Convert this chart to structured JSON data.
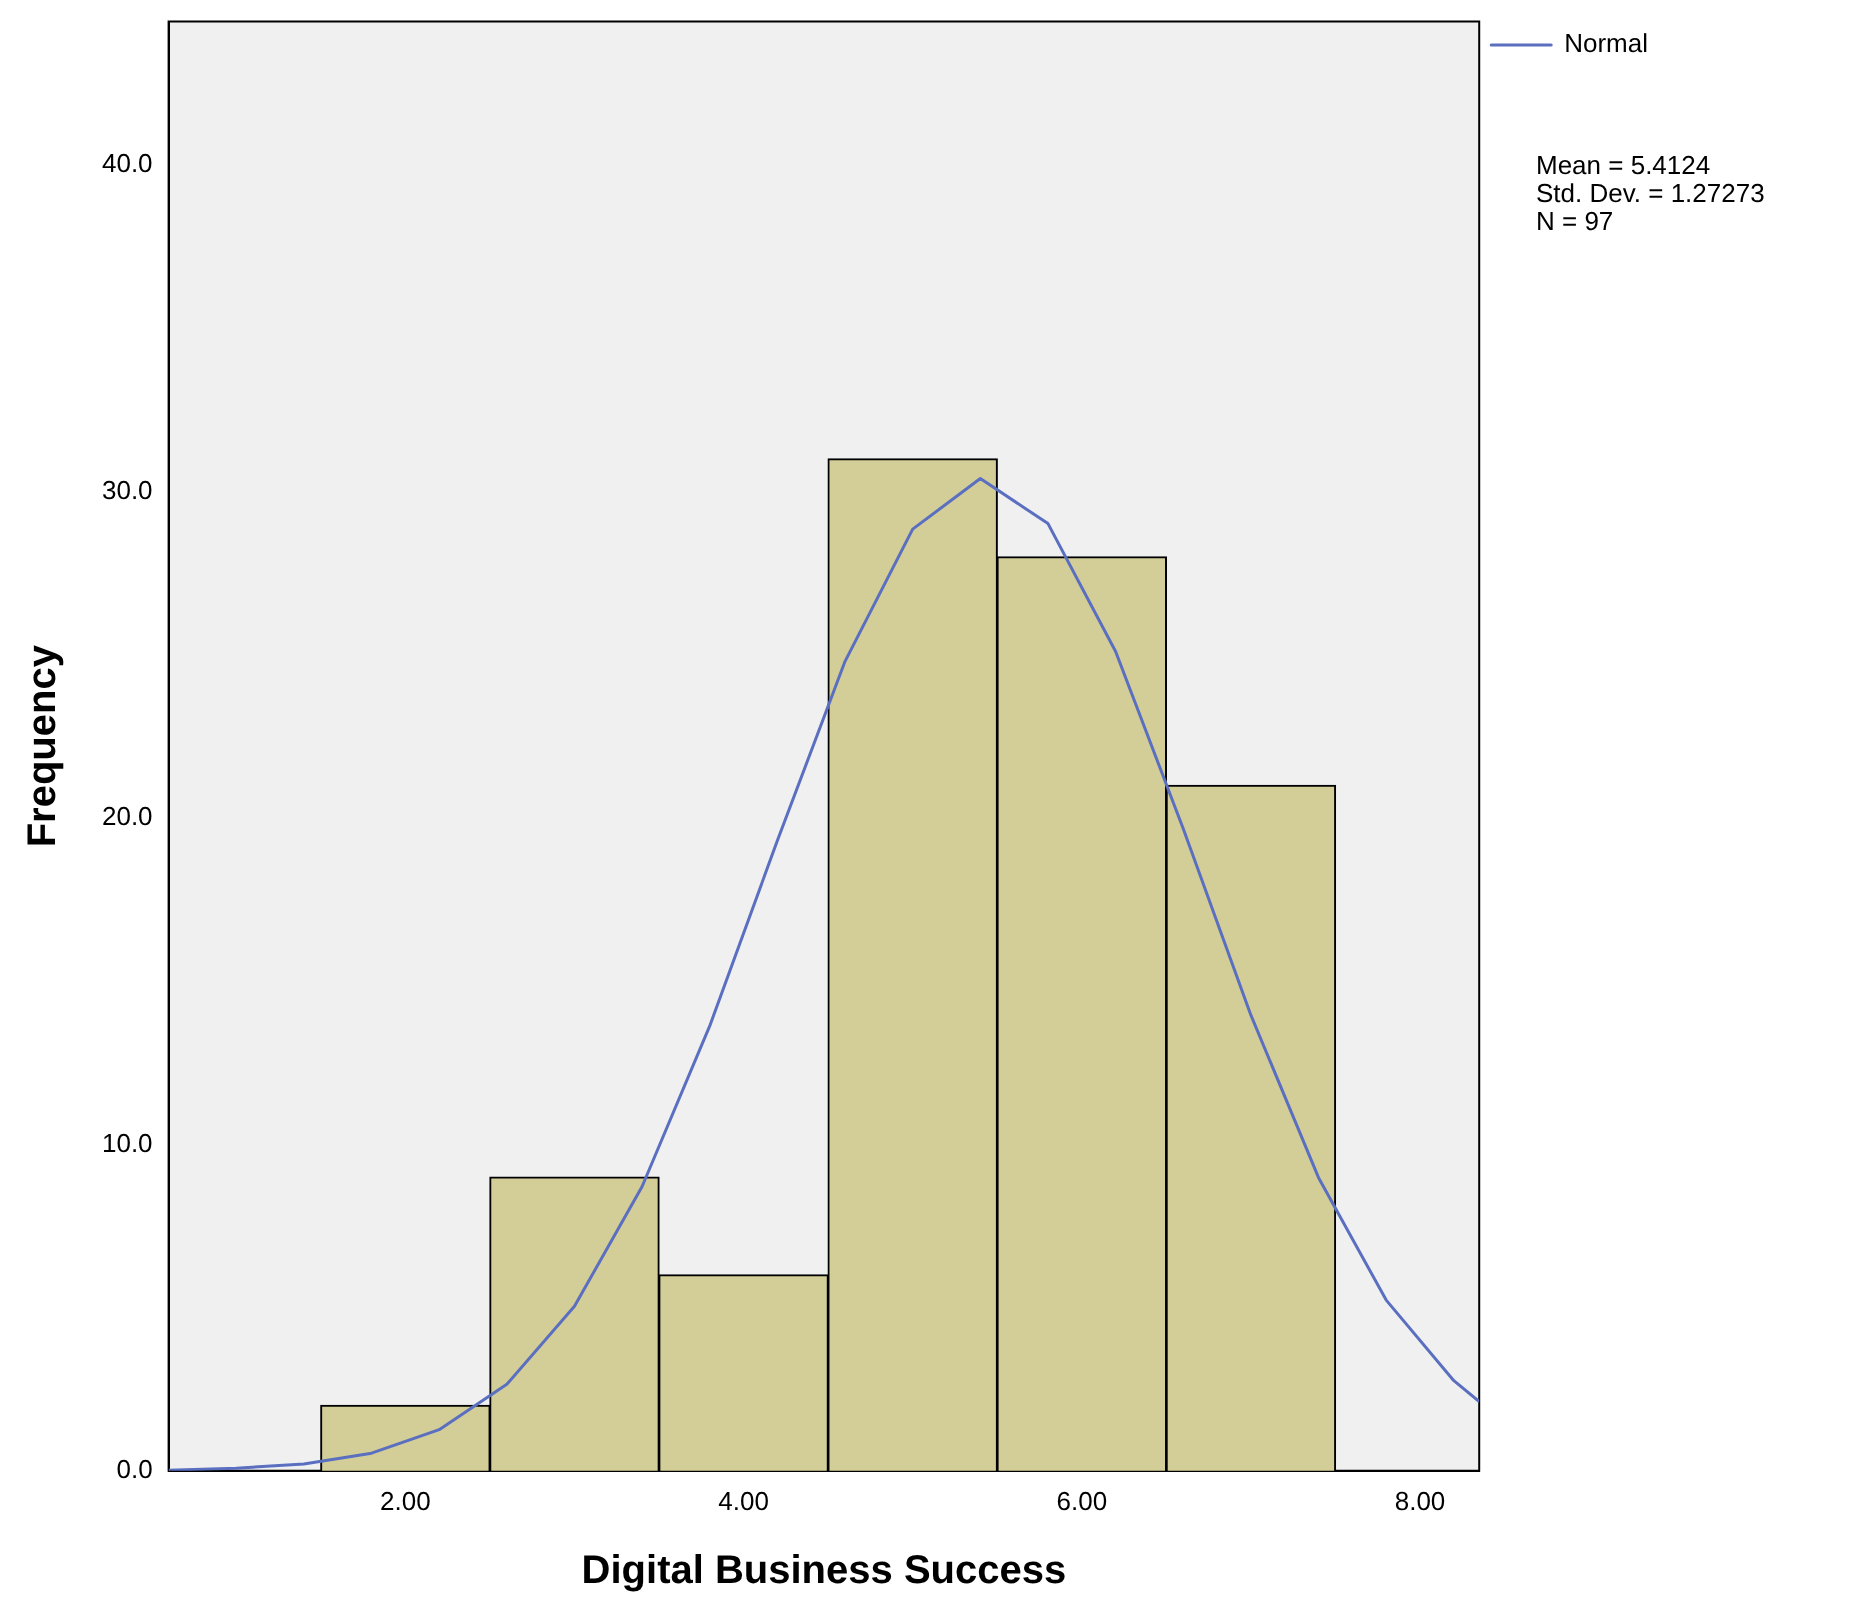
{
  "chart_data": {
    "type": "histogram",
    "xlabel": "Digital Business Success",
    "ylabel": "Frequency",
    "bins": [
      1.5,
      2.5,
      3.5,
      4.5,
      5.5,
      6.5,
      7.5
    ],
    "values": [
      2,
      9,
      6,
      31,
      28,
      21
    ],
    "color": "#d3ce98",
    "series": [
      {
        "name": "Normal",
        "type": "line",
        "color": "#5b6fc0",
        "x": [
          0.6,
          1.0,
          1.4,
          1.8,
          2.2,
          2.6,
          3.0,
          3.4,
          3.8,
          4.2,
          4.6,
          5.0,
          5.4,
          5.8,
          6.2,
          6.6,
          7.0,
          7.4,
          7.8,
          8.2,
          8.35
        ],
        "values": [
          0.02,
          0.08,
          0.21,
          0.54,
          1.26,
          2.65,
          5.04,
          8.71,
          13.63,
          19.31,
          24.8,
          28.85,
          30.4,
          29.02,
          25.1,
          19.67,
          13.96,
          8.98,
          5.23,
          2.76,
          2.12
        ]
      }
    ],
    "xlim": [
      0.6,
      8.35
    ],
    "ylim": [
      0,
      44.4
    ],
    "xticks": [
      {
        "value": 2,
        "label": "2.00"
      },
      {
        "value": 4,
        "label": "4.00"
      },
      {
        "value": 6,
        "label": "6.00"
      },
      {
        "value": 8,
        "label": "8.00"
      }
    ],
    "yticks": [
      {
        "value": 0,
        "label": "0.0"
      },
      {
        "value": 10,
        "label": "10.0"
      },
      {
        "value": 20,
        "label": "20.0"
      },
      {
        "value": 30,
        "label": "30.0"
      },
      {
        "value": 40,
        "label": "40.0"
      }
    ],
    "grid": false,
    "legend": "top right",
    "marker": "none",
    "line_style": "solid",
    "annotations": [
      "Mean = 5.4124",
      "Std. Dev. = 1.27273",
      "N = 97"
    ]
  }
}
